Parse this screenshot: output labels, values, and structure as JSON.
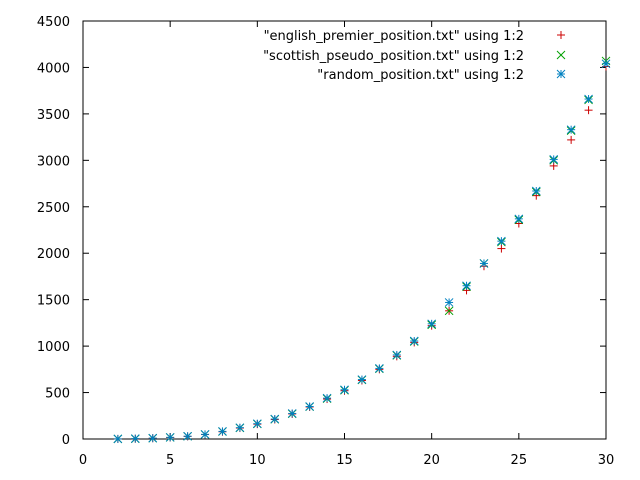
{
  "chart_data": {
    "type": "scatter",
    "title": "",
    "xlabel": "",
    "ylabel": "",
    "xlim": [
      0,
      30
    ],
    "ylim": [
      0,
      4500
    ],
    "x_ticks": [
      0,
      5,
      10,
      15,
      20,
      25,
      30
    ],
    "y_ticks": [
      0,
      500,
      1000,
      1500,
      2000,
      2500,
      3000,
      3500,
      4000,
      4500
    ],
    "grid": false,
    "legend_position": "top-right",
    "series": [
      {
        "name": "\"english_premier_position.txt\" using 1:2",
        "marker": "plus",
        "color": "#cc0000",
        "x": [
          2,
          3,
          4,
          5,
          6,
          7,
          8,
          9,
          10,
          11,
          12,
          13,
          14,
          15,
          16,
          17,
          18,
          19,
          20,
          21,
          22,
          23,
          24,
          25,
          26,
          27,
          28,
          29,
          30
        ],
        "y": [
          1,
          3,
          8,
          16,
          28,
          48,
          78,
          118,
          160,
          210,
          270,
          345,
          430,
          520,
          630,
          750,
          890,
          1040,
          1220,
          1380,
          1600,
          1860,
          2050,
          2320,
          2620,
          2940,
          3220,
          3540,
          4010
        ]
      },
      {
        "name": "\"scottish_pseudo_position.txt\" using 1:2",
        "marker": "x",
        "color": "#00a000",
        "x": [
          2,
          3,
          4,
          5,
          6,
          7,
          8,
          9,
          10,
          11,
          12,
          13,
          14,
          15,
          16,
          17,
          18,
          19,
          20,
          21,
          22,
          23,
          24,
          25,
          26,
          27,
          28,
          29,
          30
        ],
        "y": [
          1,
          3,
          8,
          17,
          29,
          49,
          80,
          120,
          162,
          212,
          272,
          348,
          435,
          525,
          636,
          756,
          900,
          1050,
          1230,
          1380,
          1640,
          1890,
          2120,
          2360,
          2660,
          3000,
          3320,
          3650,
          4070
        ]
      },
      {
        "name": "\"random_position.txt\" using 1:2",
        "marker": "star",
        "color": "#0080c0",
        "x": [
          2,
          3,
          4,
          5,
          6,
          7,
          8,
          9,
          10,
          11,
          12,
          13,
          14,
          15,
          16,
          17,
          18,
          19,
          20,
          21,
          22,
          23,
          24,
          25,
          26,
          27,
          28,
          29,
          30
        ],
        "y": [
          1,
          4,
          9,
          18,
          30,
          50,
          82,
          122,
          165,
          215,
          275,
          350,
          440,
          530,
          640,
          760,
          905,
          1055,
          1240,
          1470,
          1650,
          1890,
          2130,
          2370,
          2670,
          3010,
          3330,
          3660,
          4040
        ]
      }
    ]
  }
}
